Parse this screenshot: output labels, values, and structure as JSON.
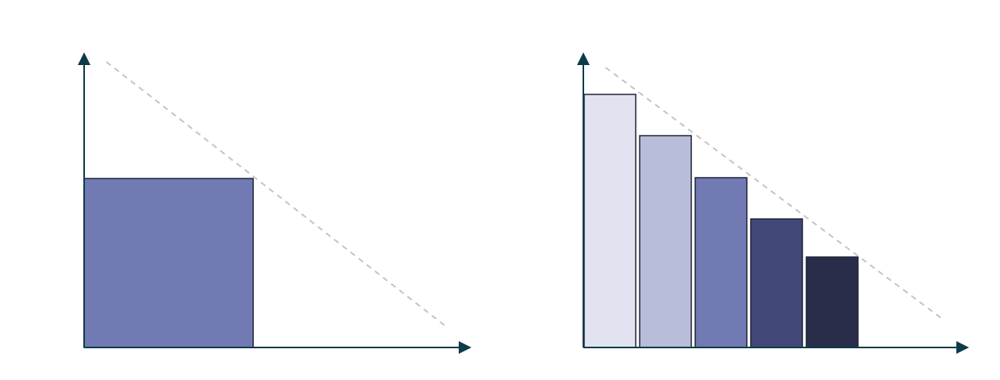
{
  "colors": {
    "axis": "#0d3b4a",
    "dashed_line": "#c4c4c4",
    "bar_outline": "#1e2235",
    "left_block": "#717ab3",
    "right_bars": [
      "#e2e3f0",
      "#b8bdd9",
      "#717ab3",
      "#414878",
      "#2a2d4a"
    ]
  }
}
